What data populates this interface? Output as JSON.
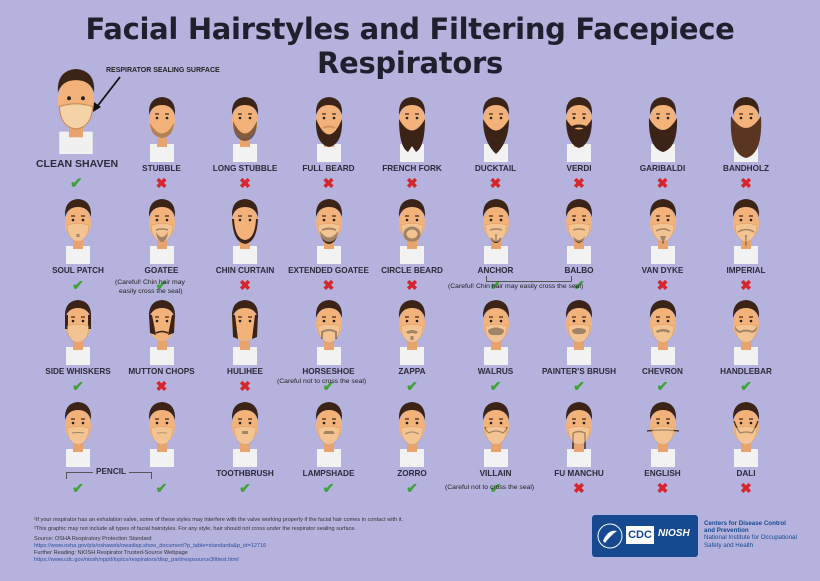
{
  "title": "Facial Hairstyles and Filtering Facepiece Respirators",
  "seal_label": "RESPIRATOR SEALING SURFACE",
  "clean_shaven": {
    "label": "CLEAN SHAVEN",
    "allowed": true
  },
  "styles": [
    {
      "label": "STUBBLE",
      "allowed": false,
      "beard": "stubble"
    },
    {
      "label": "LONG STUBBLE",
      "allowed": false,
      "beard": "longstubble"
    },
    {
      "label": "FULL BEARD",
      "allowed": false,
      "beard": "full"
    },
    {
      "label": "FRENCH FORK",
      "allowed": false,
      "beard": "fork"
    },
    {
      "label": "DUCKTAIL",
      "allowed": false,
      "beard": "ducktail"
    },
    {
      "label": "VERDI",
      "allowed": false,
      "beard": "verdi"
    },
    {
      "label": "GARIBALDI",
      "allowed": false,
      "beard": "garibaldi"
    },
    {
      "label": "BANDHOLZ",
      "allowed": false,
      "beard": "bandholz"
    },
    {
      "label": "SOUL PATCH",
      "allowed": true,
      "beard": "soulpatch"
    },
    {
      "label": "GOATEE",
      "allowed": true,
      "beard": "goatee"
    },
    {
      "label": "CHIN CURTAIN",
      "allowed": false,
      "beard": "chincurtain"
    },
    {
      "label": "EXTENDED GOATEE",
      "allowed": false,
      "beard": "extgoatee"
    },
    {
      "label": "CIRCLE BEARD",
      "allowed": false,
      "beard": "circle"
    },
    {
      "label": "ANCHOR",
      "allowed": true,
      "beard": "anchor"
    },
    {
      "label": "BALBO",
      "allowed": true,
      "beard": "balbo"
    },
    {
      "label": "VAN DYKE",
      "allowed": false,
      "beard": "vandyke"
    },
    {
      "label": "IMPERIAL",
      "allowed": false,
      "beard": "imperial"
    },
    {
      "label": "SIDE WHISKERS",
      "allowed": true,
      "beard": "sidewhiskers"
    },
    {
      "label": "MUTTON CHOPS",
      "allowed": false,
      "beard": "mutton"
    },
    {
      "label": "HULIHEE",
      "allowed": false,
      "beard": "hulihee"
    },
    {
      "label": "HORSESHOE",
      "allowed": true,
      "beard": "horseshoe"
    },
    {
      "label": "ZAPPA",
      "allowed": true,
      "beard": "zappa"
    },
    {
      "label": "WALRUS",
      "allowed": true,
      "beard": "walrus"
    },
    {
      "label": "PAINTER'S BRUSH",
      "allowed": true,
      "beard": "painter"
    },
    {
      "label": "CHEVRON",
      "allowed": true,
      "beard": "chevron"
    },
    {
      "label": "HANDLEBAR",
      "allowed": true,
      "beard": "handlebar"
    },
    {
      "label": "",
      "allowed": true,
      "beard": "pencil"
    },
    {
      "label": "",
      "allowed": true,
      "beard": "pencil2"
    },
    {
      "label": "TOOTHBRUSH",
      "allowed": true,
      "beard": "toothbrush"
    },
    {
      "label": "LAMPSHADE",
      "allowed": true,
      "beard": "lampshade"
    },
    {
      "label": "ZORRO",
      "allowed": true,
      "beard": "zorro"
    },
    {
      "label": "VILLAIN",
      "allowed": true,
      "beard": "villain"
    },
    {
      "label": "FU MANCHU",
      "allowed": false,
      "beard": "fumanchu"
    },
    {
      "label": "ENGLISH",
      "allowed": false,
      "beard": "english"
    },
    {
      "label": "DALI",
      "allowed": false,
      "beard": "dali"
    }
  ],
  "pencil_label": "PENCIL",
  "notes": {
    "goatee_1": "(Careful! Chin hair may",
    "goatee_2": "easily cross the seal)",
    "anchor_balbo": "(Careful! Chin hair may easily cross the seal)",
    "horseshoe": "(Careful not to cross the seal)",
    "villain": "(Careful not to cross the seal)"
  },
  "footer": {
    "note1": "¹If your respirator has an exhalation valve, some of these styles may interfere with the valve working properly if the facial hair comes in contact with it.",
    "note2": "²This graphic may not include all types of facial hairstyles. For any style, hair should not cross under the respirator sealing surface.",
    "source_label": "Source: OSHA Respiratory Protection Standard",
    "source_url": "https://www.osha.gov/pls/oshaweb/owadisp.show_document?p_table=standards&p_id=12716",
    "further_label": "Further Reading: NIOSH Respirator Trusted-Source Webpage",
    "further_url": "https://www.cdc.gov/niosh/npptl/topics/respirators/disp_part/respsource3fittest.html"
  },
  "logo": {
    "cdc": "CDC",
    "niosh": "NIOSH",
    "line1": "Centers for Disease Control",
    "line2": "and Prevention",
    "line3": "National Institute for Occupational",
    "line4": "Safety and Health"
  },
  "colors": {
    "background": "#b5b3de",
    "ok": "#3fa33a",
    "no": "#d6252c",
    "skin": "#f2b27a",
    "hair": "#3b2417",
    "mask": "#f4d3a6"
  }
}
